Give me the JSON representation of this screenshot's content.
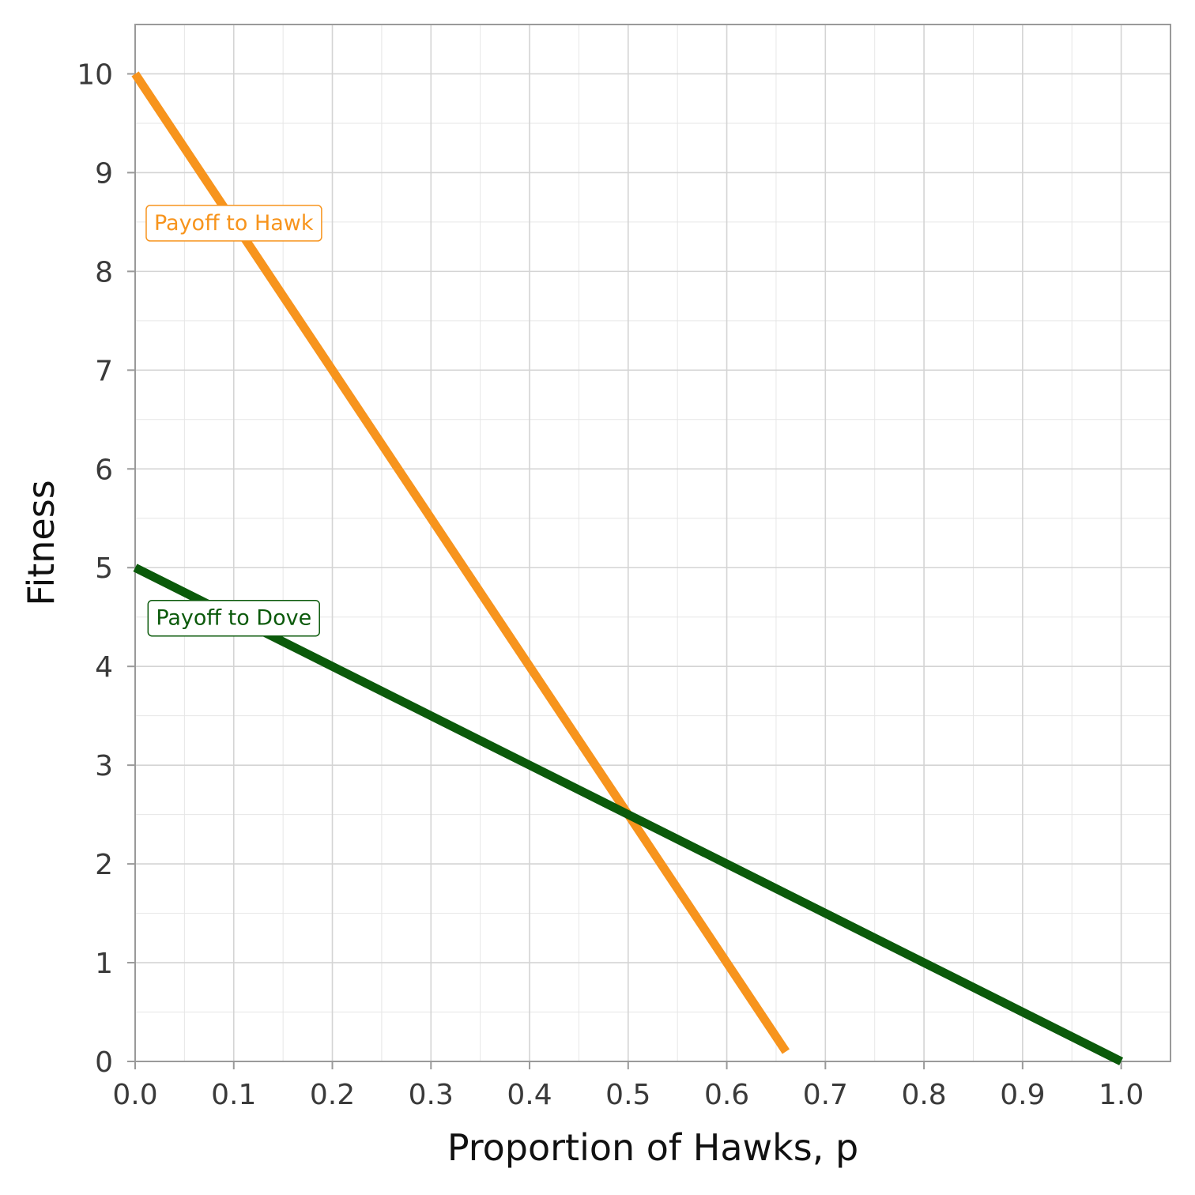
{
  "chart_data": {
    "type": "line",
    "title": "",
    "xlabel": "Proportion of Hawks, p",
    "ylabel": "Fitness",
    "xlim": [
      0,
      1.05
    ],
    "ylim": [
      0,
      10.5
    ],
    "x_ticks": [
      "0.0",
      "0.1",
      "0.2",
      "0.3",
      "0.4",
      "0.5",
      "0.6",
      "0.7",
      "0.8",
      "0.9",
      "1.0"
    ],
    "y_ticks": [
      "0",
      "1",
      "2",
      "3",
      "4",
      "5",
      "6",
      "7",
      "8",
      "9",
      "10"
    ],
    "grid": true,
    "legend": "none (direct labels)",
    "series": [
      {
        "name": "Payoff to Hawk",
        "color": "#f7941d",
        "x": [
          0.0,
          0.1,
          0.2,
          0.3,
          0.4,
          0.5,
          0.6,
          0.66
        ],
        "y": [
          10.0,
          8.5,
          7.0,
          5.5,
          4.0,
          2.5,
          1.0,
          0.1
        ],
        "label_at": {
          "x": 0.1,
          "y": 8.5
        }
      },
      {
        "name": "Payoff to Dove",
        "color": "#0b5a0b",
        "x": [
          0.0,
          0.1,
          0.2,
          0.3,
          0.4,
          0.5,
          0.6,
          0.7,
          0.8,
          0.9,
          1.0
        ],
        "y": [
          5.0,
          4.5,
          4.0,
          3.5,
          3.0,
          2.5,
          2.0,
          1.5,
          1.0,
          0.5,
          0.0
        ],
        "label_at": {
          "x": 0.1,
          "y": 4.5
        }
      }
    ]
  }
}
